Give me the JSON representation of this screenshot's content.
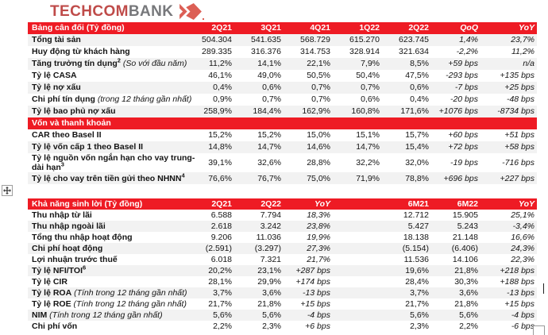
{
  "logo": {
    "brand_primary": "TECHCOM",
    "brand_secondary": "BANK"
  },
  "colors": {
    "header_red": "#EE1B24",
    "row_stripe": "#F2F2F2",
    "logo_red": "#BF4B49",
    "logo_gray": "#77787B",
    "logo_mark_red": "#DC5F55"
  },
  "balance_sheet": {
    "title": "Bảng cân đối (Tỷ đồng)",
    "columns": [
      "2Q21",
      "3Q21",
      "4Q21",
      "1Q22",
      "2Q22",
      "QoQ",
      "YoY"
    ],
    "rows": [
      {
        "label": "Tổng tài sản",
        "values": [
          "504.304",
          "541.635",
          "568.729",
          "615.270",
          "623.745",
          "1,4%",
          "23,7%"
        ]
      },
      {
        "label": "Huy động từ khách hàng",
        "values": [
          "289.335",
          "316.376",
          "314.753",
          "328.914",
          "321.634",
          "-2,2%",
          "11,2%"
        ]
      },
      {
        "label": "Tăng trưởng tín dụng",
        "sup": "2",
        "note": "(So với đầu năm)",
        "values": [
          "11,2%",
          "14,1%",
          "22,1%",
          "7,9%",
          "8,5%",
          "+59 bps",
          "n/a"
        ]
      },
      {
        "label": "Tỷ lệ CASA",
        "values": [
          "46,1%",
          "49,0%",
          "50,5%",
          "50,4%",
          "47,5%",
          "-293 bps",
          "+135 bps"
        ]
      },
      {
        "label": "Tỷ lệ nợ xấu",
        "values": [
          "0,4%",
          "0,6%",
          "0,7%",
          "0,7%",
          "0,6%",
          "-7 bps",
          "+25 bps"
        ]
      },
      {
        "label": "Chi phí tín dụng",
        "note": "(trong 12 tháng gần nhất)",
        "values": [
          "0,9%",
          "0,7%",
          "0,7%",
          "0,6%",
          "0,4%",
          "-20 bps",
          "-48 bps"
        ]
      },
      {
        "label": "Tỷ lệ bao phủ nợ xấu",
        "values": [
          "258,9%",
          "184,4%",
          "162,9%",
          "160,8%",
          "171,6%",
          "+1076 bps",
          "-8734 bps"
        ]
      }
    ],
    "section2_title": "Vốn và thanh khoản",
    "section2_rows": [
      {
        "label": "CAR theo Basel II",
        "values": [
          "15,2%",
          "15,2%",
          "15,0%",
          "15,1%",
          "15,7%",
          "+60 bps",
          "+51 bps"
        ]
      },
      {
        "label": "Tỷ lệ vốn cấp 1 theo Basel II",
        "values": [
          "14,8%",
          "14,7%",
          "14,6%",
          "14,7%",
          "15,4%",
          "+72 bps",
          "+58 bps"
        ]
      },
      {
        "label": "Tỷ lệ nguồn vốn ngắn hạn cho vay trung-dài hạn",
        "sup": "3",
        "values": [
          "39,1%",
          "32,6%",
          "28,8%",
          "32,2%",
          "32,0%",
          "-19 bps",
          "-716 bps"
        ]
      },
      {
        "label": "Tỷ lệ cho vay trên tiền gửi theo NHNN",
        "sup": "4",
        "values": [
          "76,6%",
          "76,7%",
          "75,0%",
          "71,9%",
          "78,8%",
          "+696 bps",
          "+227 bps"
        ]
      }
    ]
  },
  "profitability": {
    "title": "Khả năng sinh lời (Tỷ đồng)",
    "columns": [
      "2Q21",
      "2Q22",
      "YoY",
      "6M21",
      "6M22",
      "YoY"
    ],
    "rows": [
      {
        "label": "Thu nhập từ lãi",
        "values": [
          "6.588",
          "7.794",
          "18,3%",
          "12.712",
          "15.905",
          "25,1%"
        ]
      },
      {
        "label": "Thu nhập ngoài lãi",
        "values": [
          "2.618",
          "3.242",
          "23,8%",
          "5.427",
          "5.243",
          "-3,4%"
        ]
      },
      {
        "label": "Tổng thu nhập hoạt động",
        "values": [
          "9.206",
          "11.036",
          "19,9%",
          "18.138",
          "21.148",
          "16,6%"
        ]
      },
      {
        "label": "Chi phí hoạt động",
        "values": [
          "(2.591)",
          "(3.297)",
          "27,3%",
          "(5.154)",
          "(6.406)",
          "24,3%"
        ]
      },
      {
        "label": "Lợi nhuận trước thuế",
        "values": [
          "6.018",
          "7.321",
          "21,7%",
          "11.536",
          "14.106",
          "22,3%"
        ]
      },
      {
        "label": "Tỷ lệ NFI/TOI",
        "sup": "6",
        "values": [
          "20,2%",
          "23,1%",
          "+287 bps",
          "19,6%",
          "21,8%",
          "+218 bps"
        ]
      },
      {
        "label": "Tỷ lệ CIR",
        "values": [
          "28,1%",
          "29,9%",
          "+174 bps",
          "28,4%",
          "30,3%",
          "+188 bps"
        ]
      },
      {
        "label": "Tỷ lệ ROA",
        "note": "(Tính trong 12 tháng gần nhất)",
        "values": [
          "3,7%",
          "3,6%",
          "-13 bps",
          "3,7%",
          "3,6%",
          "-13 bps"
        ]
      },
      {
        "label": "Tỷ lệ ROE",
        "note": "(Tính trong 12 tháng gần nhất)",
        "values": [
          "21,7%",
          "21,8%",
          "+15 bps",
          "21,7%",
          "21,8%",
          "+15 bps"
        ]
      },
      {
        "label": "NIM",
        "note": "(Tính trong 12 tháng gần nhất)",
        "values": [
          "5,6%",
          "5,6%",
          "-4 bps",
          "5,6%",
          "5,6%",
          "-4 bps"
        ]
      },
      {
        "label": "Chi phí vốn",
        "values": [
          "2,2%",
          "2,3%",
          "+6 bps",
          "2,3%",
          "2,2%",
          "-6 bps"
        ]
      }
    ]
  }
}
